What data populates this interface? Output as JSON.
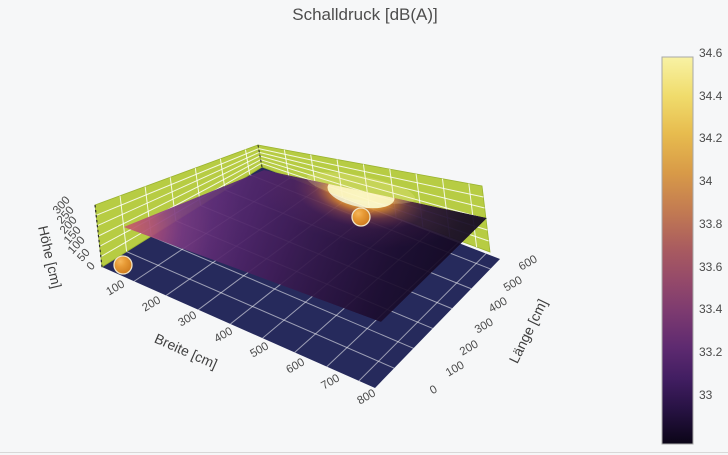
{
  "title": "Schalldruck [dB(A)]",
  "axes": {
    "hoehe": {
      "label": "Höhe [cm]",
      "ticks": [
        "0",
        "50",
        "100",
        "150",
        "200",
        "250",
        "300"
      ]
    },
    "breite": {
      "label": "Breite [cm]",
      "ticks": [
        "100",
        "200",
        "300",
        "400",
        "500",
        "600",
        "700",
        "800"
      ]
    },
    "laenge": {
      "label": "Länge [cm]",
      "ticks": [
        "0",
        "100",
        "200",
        "300",
        "400",
        "500",
        "600"
      ]
    }
  },
  "colorbar": {
    "ticks": [
      "33",
      "33.2",
      "33.4",
      "33.6",
      "33.8",
      "34",
      "34.2",
      "34.4",
      "34.6"
    ],
    "value_min": 33,
    "value_max": 34.6
  },
  "colors": {
    "wall_green": "#b7cc43",
    "floor_navy": "#262a5c",
    "marker_orange": "#e2912f",
    "surface_purple": "#3a1c5c",
    "hotspot_yellow": "#fdf7bb",
    "title_gray": "#4d4d4d"
  },
  "chart_data": {
    "type": "surface",
    "title": "Schalldruck [dB(A)]",
    "xlabel": "Breite [cm]",
    "ylabel": "Länge [cm]",
    "zlabel": "Höhe [cm]",
    "x_range": [
      0,
      850
    ],
    "y_range": [
      0,
      650
    ],
    "z_range": [
      0,
      300
    ],
    "grid": true,
    "colorbar": {
      "tick_values": [
        33,
        33.2,
        33.4,
        33.6,
        33.8,
        34,
        34.2,
        34.4,
        34.6
      ],
      "value_min": 32.98,
      "value_max": 34.62,
      "colormap": "magma/inferno-like: black -> dark violet -> purple -> maroon red -> orange gold -> pale yellow",
      "position": "right"
    },
    "room": {
      "walls": "L-shaped yellow-green walls along Breite=0 and Länge≈650, height 300 cm, white grid",
      "floor": "dark navy plane at Höhe=0 with white 100 cm grid"
    },
    "pressure_plane": {
      "description": "semi-transparent horizontal sound-pressure map at listening height ≈130 cm colored by dB(A)",
      "value_range_dBA": [
        33,
        34.6
      ],
      "features": [
        {
          "type": "maximum-hotspot",
          "approx_breite_cm": 380,
          "approx_laenge_cm": 620,
          "approx_value_dBA": 34.6
        },
        {
          "type": "elevated-zone",
          "approx_breite_cm": 0,
          "approx_laenge_cm": 0,
          "approx_value_dBA": 33.9
        },
        {
          "type": "minimum-zone",
          "approx_breite_cm": 800,
          "approx_laenge_cm": 150,
          "approx_value_dBA": 33.0
        }
      ]
    },
    "markers": [
      {
        "name": "speaker-marker-back",
        "approx_breite_cm": 400,
        "approx_laenge_cm": 570,
        "approx_hoehe_cm": 130
      },
      {
        "name": "speaker-marker-front",
        "approx_breite_cm": 60,
        "approx_laenge_cm": 0,
        "approx_hoehe_cm": 20
      }
    ]
  }
}
